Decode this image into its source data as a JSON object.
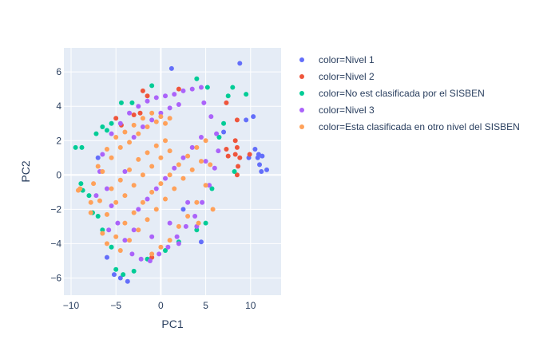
{
  "chart_data": {
    "type": "scatter",
    "xlabel": "PC1",
    "ylabel": "PC2",
    "xlim": [
      -10.8,
      13.4
    ],
    "ylim": [
      -7.0,
      7.4
    ],
    "xticks": [
      -10,
      -5,
      0,
      5,
      10
    ],
    "yticks": [
      -6,
      -4,
      -2,
      0,
      2,
      4,
      6
    ],
    "grid": true,
    "legend_position": "right",
    "plot_background": "#e5ecf6",
    "series": [
      {
        "name": "color=Nivel 1",
        "color": "#636efa",
        "points": [
          [
            1.2,
            6.2
          ],
          [
            8.8,
            6.5
          ],
          [
            9.5,
            3.2
          ],
          [
            10.3,
            3.4
          ],
          [
            11.3,
            1.1
          ],
          [
            10.8,
            1.0
          ],
          [
            11.0,
            0.6
          ],
          [
            11.8,
            0.3
          ],
          [
            11.2,
            0.2
          ],
          [
            9.8,
            1.0
          ],
          [
            10.5,
            1.5
          ],
          [
            10.9,
            1.2
          ],
          [
            -4.5,
            -6.0
          ],
          [
            -5.2,
            -5.8
          ],
          [
            -3.7,
            -6.2
          ],
          [
            7.0,
            2.5
          ],
          [
            -6.0,
            -4.8
          ],
          [
            4.5,
            -3.9
          ],
          [
            -7.0,
            1.0
          ],
          [
            2.5,
            -2.0
          ]
        ]
      },
      {
        "name": "color=Nivel 2",
        "color": "#ef553b",
        "points": [
          [
            -2.0,
            4.9
          ],
          [
            -1.5,
            4.6
          ],
          [
            -2.3,
            3.6
          ],
          [
            7.3,
            4.2
          ],
          [
            8.5,
            3.2
          ],
          [
            8.3,
            2.0
          ],
          [
            7.3,
            1.5
          ],
          [
            8.3,
            1.2
          ],
          [
            8.5,
            1.6
          ],
          [
            8.5,
            0.0
          ],
          [
            8.8,
            1.0
          ],
          [
            9.9,
            1.2
          ],
          [
            8.6,
            0.5
          ],
          [
            -5.0,
            3.3
          ],
          [
            -3.0,
            3.5
          ],
          [
            -4.4,
            2.9
          ],
          [
            7.5,
            1.1
          ],
          [
            2.0,
            5.0
          ],
          [
            -1.0,
            -4.8
          ]
        ]
      },
      {
        "name": "color=No est  clasificada por el SISBEN",
        "color": "#00cc96",
        "points": [
          [
            -9.5,
            1.6
          ],
          [
            -8.8,
            1.6
          ],
          [
            -7.2,
            2.4
          ],
          [
            -6.5,
            2.8
          ],
          [
            -6.0,
            2.6
          ],
          [
            -5.5,
            3.0
          ],
          [
            -8.9,
            -0.5
          ],
          [
            -8.7,
            -0.9
          ],
          [
            -8.0,
            -1.2
          ],
          [
            -7.6,
            -2.2
          ],
          [
            -7.0,
            -2.4
          ],
          [
            -6.5,
            -3.2
          ],
          [
            -5.5,
            -4.2
          ],
          [
            -5.0,
            -5.5
          ],
          [
            -4.2,
            -5.8
          ],
          [
            -3.0,
            -5.6
          ],
          [
            -1.5,
            -4.9
          ],
          [
            0.5,
            -4.4
          ],
          [
            2.0,
            -3.9
          ],
          [
            4.0,
            -3.2
          ],
          [
            5.0,
            -2.8
          ],
          [
            -3.2,
            4.2
          ],
          [
            -1.0,
            5.2
          ],
          [
            4.0,
            5.6
          ],
          [
            5.2,
            5.1
          ],
          [
            7.5,
            4.6
          ],
          [
            8.0,
            5.1
          ],
          [
            9.5,
            4.7
          ],
          [
            6.5,
            2.2
          ],
          [
            7.0,
            3.0
          ],
          [
            8.2,
            0.2
          ],
          [
            5.7,
            -0.8
          ],
          [
            -4.4,
            4.2
          ]
        ]
      },
      {
        "name": "color=Nivel 3",
        "color": "#ab63fa",
        "points": [
          [
            -6.5,
            1.2
          ],
          [
            -5.5,
            2.4
          ],
          [
            -4.5,
            3.0
          ],
          [
            -3.5,
            3.6
          ],
          [
            -2.5,
            4.0
          ],
          [
            -1.5,
            4.3
          ],
          [
            -0.5,
            4.5
          ],
          [
            0.5,
            4.6
          ],
          [
            1.5,
            4.7
          ],
          [
            2.5,
            4.9
          ],
          [
            3.5,
            5.0
          ],
          [
            4.5,
            5.1
          ],
          [
            -6.8,
            0.2
          ],
          [
            -6.0,
            -0.8
          ],
          [
            -5.5,
            -1.8
          ],
          [
            -4.8,
            -2.8
          ],
          [
            -4.0,
            -3.8
          ],
          [
            -3.2,
            -4.6
          ],
          [
            -2.2,
            -4.9
          ],
          [
            -1.2,
            -5.0
          ],
          [
            -0.2,
            -4.6
          ],
          [
            0.8,
            -4.2
          ],
          [
            1.8,
            -3.6
          ],
          [
            2.8,
            -3.0
          ],
          [
            3.8,
            -2.4
          ],
          [
            4.6,
            -1.6
          ],
          [
            5.4,
            -0.6
          ],
          [
            6.0,
            0.4
          ],
          [
            6.4,
            1.4
          ],
          [
            6.2,
            2.4
          ],
          [
            5.6,
            3.4
          ],
          [
            4.8,
            4.2
          ],
          [
            -3.0,
            2.2
          ],
          [
            -2.0,
            2.8
          ],
          [
            -1.0,
            3.2
          ],
          [
            0.0,
            3.6
          ],
          [
            1.0,
            3.9
          ],
          [
            2.0,
            4.1
          ],
          [
            -2.5,
            -2.0
          ],
          [
            -1.5,
            -1.4
          ],
          [
            -0.5,
            -0.8
          ],
          [
            0.5,
            -0.2
          ],
          [
            1.5,
            0.4
          ],
          [
            2.5,
            1.0
          ],
          [
            3.5,
            1.6
          ],
          [
            4.5,
            2.2
          ],
          [
            -4.0,
            0.2
          ],
          [
            -3.0,
            -3.2
          ],
          [
            -1.0,
            -3.6
          ],
          [
            1.0,
            -2.8
          ],
          [
            3.0,
            -1.6
          ],
          [
            5.0,
            0.8
          ],
          [
            -5.8,
            -3.2
          ],
          [
            -7.2,
            -1.2
          ],
          [
            4.0,
            -3.0
          ],
          [
            2.0,
            -4.0
          ]
        ]
      },
      {
        "name": "color=Esta clasificada en otro nivel del SISBEN",
        "color": "#ffa15a",
        "points": [
          [
            -9.0,
            -0.8
          ],
          [
            -7.5,
            -0.5
          ],
          [
            -7.0,
            0.5
          ],
          [
            -6.5,
            0.2
          ],
          [
            -6.0,
            1.5
          ],
          [
            -5.5,
            1.0
          ],
          [
            -5.0,
            2.2
          ],
          [
            -4.5,
            1.6
          ],
          [
            -4.0,
            2.5
          ],
          [
            -3.5,
            1.9
          ],
          [
            -3.0,
            2.9
          ],
          [
            -2.5,
            2.4
          ],
          [
            -2.0,
            3.3
          ],
          [
            -1.5,
            2.8
          ],
          [
            -1.0,
            3.6
          ],
          [
            -0.5,
            3.1
          ],
          [
            0.0,
            3.4
          ],
          [
            0.5,
            3.0
          ],
          [
            1.0,
            3.3
          ],
          [
            -7.8,
            -2.2
          ],
          [
            -6.8,
            -1.5
          ],
          [
            -6.0,
            -2.3
          ],
          [
            -5.5,
            -0.8
          ],
          [
            -5.0,
            -1.6
          ],
          [
            -4.5,
            -0.3
          ],
          [
            -4.0,
            -1.2
          ],
          [
            -3.5,
            0.3
          ],
          [
            -3.0,
            -0.6
          ],
          [
            -2.5,
            0.9
          ],
          [
            -2.0,
            0.0
          ],
          [
            -1.5,
            1.3
          ],
          [
            -1.0,
            0.5
          ],
          [
            -0.5,
            1.7
          ],
          [
            0.0,
            1.0
          ],
          [
            0.5,
            2.0
          ],
          [
            1.0,
            1.4
          ],
          [
            -6.5,
            -3.4
          ],
          [
            -6.0,
            -4.0
          ],
          [
            -5.0,
            -3.6
          ],
          [
            -4.5,
            -4.4
          ],
          [
            -4.0,
            -2.8
          ],
          [
            -3.5,
            -3.8
          ],
          [
            -3.0,
            -2.2
          ],
          [
            -2.5,
            -3.2
          ],
          [
            -2.0,
            -1.6
          ],
          [
            -1.5,
            -2.6
          ],
          [
            -1.0,
            -1.0
          ],
          [
            -0.5,
            -2.0
          ],
          [
            0.0,
            -0.5
          ],
          [
            0.5,
            -1.4
          ],
          [
            1.0,
            0.0
          ],
          [
            1.5,
            -0.8
          ],
          [
            2.0,
            0.6
          ],
          [
            2.5,
            -0.2
          ],
          [
            3.0,
            1.1
          ],
          [
            3.5,
            0.3
          ],
          [
            4.0,
            1.6
          ],
          [
            4.5,
            0.8
          ],
          [
            5.0,
            2.0
          ],
          [
            2.0,
            -3.0
          ],
          [
            1.0,
            -3.8
          ],
          [
            0.0,
            -4.2
          ],
          [
            -1.0,
            -4.6
          ],
          [
            3.0,
            -2.4
          ],
          [
            4.0,
            -1.6
          ],
          [
            5.0,
            -0.6
          ],
          [
            5.5,
            0.6
          ],
          [
            -9.2,
            -0.9
          ],
          [
            -7.8,
            -1.6
          ],
          [
            4.2,
            -2.8
          ],
          [
            5.8,
            -2.0
          ]
        ]
      }
    ]
  }
}
